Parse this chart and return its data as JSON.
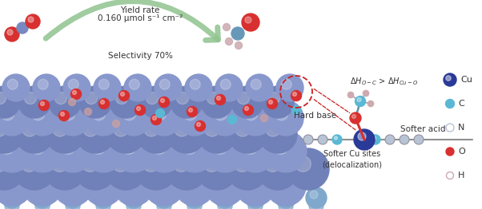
{
  "bg_color": "#ffffff",
  "yield_rate_line1": "Yield rate",
  "yield_rate_line2": "0.160 μmol s⁻¹ cm⁻²",
  "selectivity_text": "Selectivity 70%",
  "arrow_color": "#90c490",
  "delta_h_text": "$\\Delta H_{O-C}$ > $\\Delta H_{Cu-O}$",
  "hard_base_text": "Hard base",
  "softer_acid_text": "Softer acid",
  "softer_cu_text": "Softer Cu sites\n(delocalization)",
  "legend_items": [
    {
      "label": "Cu",
      "color": "#3a4ea8",
      "size": 7,
      "filled": true
    },
    {
      "label": "C",
      "color": "#5bb8d4",
      "size": 5,
      "filled": true
    },
    {
      "label": "N",
      "color": "#b0bdd4",
      "size": 5,
      "filled": false
    },
    {
      "label": "O",
      "color": "#d83030",
      "size": 5,
      "filled": true
    },
    {
      "label": "H",
      "color": "#ddb8b8",
      "size": 4,
      "filled": false
    }
  ],
  "cu_color_top": "#8898cc",
  "cu_color_mid": "#7080b8",
  "cu_color_bot": "#90a8d0",
  "cu_color_stem": "#80a8cc",
  "red_color": "#d83030",
  "pink_color": "#cca0a0",
  "cyan_color": "#5bb8d4",
  "chain_cu_color": "#2a3a98",
  "chain_c_color": "#5bb8d4",
  "chain_n_color": "#b8c4d4",
  "dashed_color": "#cc2020",
  "co2_o_color": "#d83030",
  "co2_c_color": "#7888c0",
  "meth_o_color": "#d83030",
  "meth_c_color": "#6898b8",
  "meth_h_color": "#ccaab0"
}
